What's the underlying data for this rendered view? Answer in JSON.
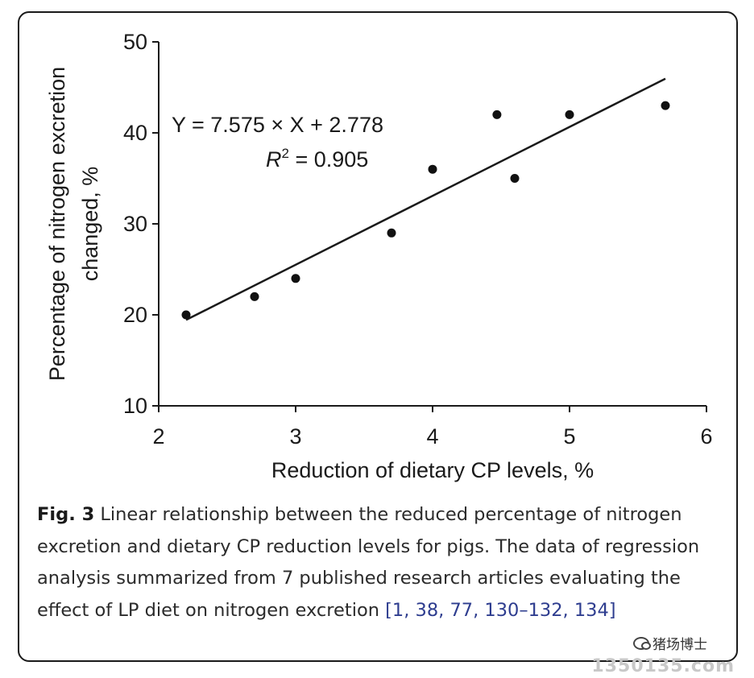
{
  "chart_data": {
    "type": "scatter",
    "title": "",
    "xlabel": "Reduction of dietary CP levels, %",
    "ylabel_line1": "Percentage of nitrogen excretion",
    "ylabel_line2": "changed, %",
    "xlim": [
      2,
      6
    ],
    "ylim": [
      10,
      50
    ],
    "xticks": [
      2,
      3,
      4,
      5,
      6
    ],
    "yticks": [
      10,
      20,
      30,
      40,
      50
    ],
    "grid": false,
    "points": [
      {
        "x": 2.2,
        "y": 20
      },
      {
        "x": 2.7,
        "y": 22
      },
      {
        "x": 3.0,
        "y": 24
      },
      {
        "x": 3.7,
        "y": 29
      },
      {
        "x": 4.0,
        "y": 36
      },
      {
        "x": 4.47,
        "y": 42
      },
      {
        "x": 4.6,
        "y": 35
      },
      {
        "x": 5.0,
        "y": 42
      },
      {
        "x": 5.7,
        "y": 43
      }
    ],
    "fit_line": {
      "x_start": 2.2,
      "x_end": 5.7,
      "slope": 7.575,
      "intercept": 2.778
    },
    "annotation": {
      "equation": "Y = 7.575 × X + 2.778",
      "r2_symbol": "R",
      "r2_exponent": "2",
      "r2_value": " = 0.905"
    }
  },
  "caption": {
    "label": "Fig. 3",
    "text": " Linear relationship between the reduced percentage of nitrogen excretion and dietary CP reduction levels for pigs. The data of regression analysis summarized from 7 published research articles evaluating the effect of LP diet on nitrogen excretion ",
    "refs": "[1, 38, 77, 130–132, 134]"
  },
  "footer": {
    "wechat_name": "猪场博士",
    "site": "1350135.com"
  }
}
